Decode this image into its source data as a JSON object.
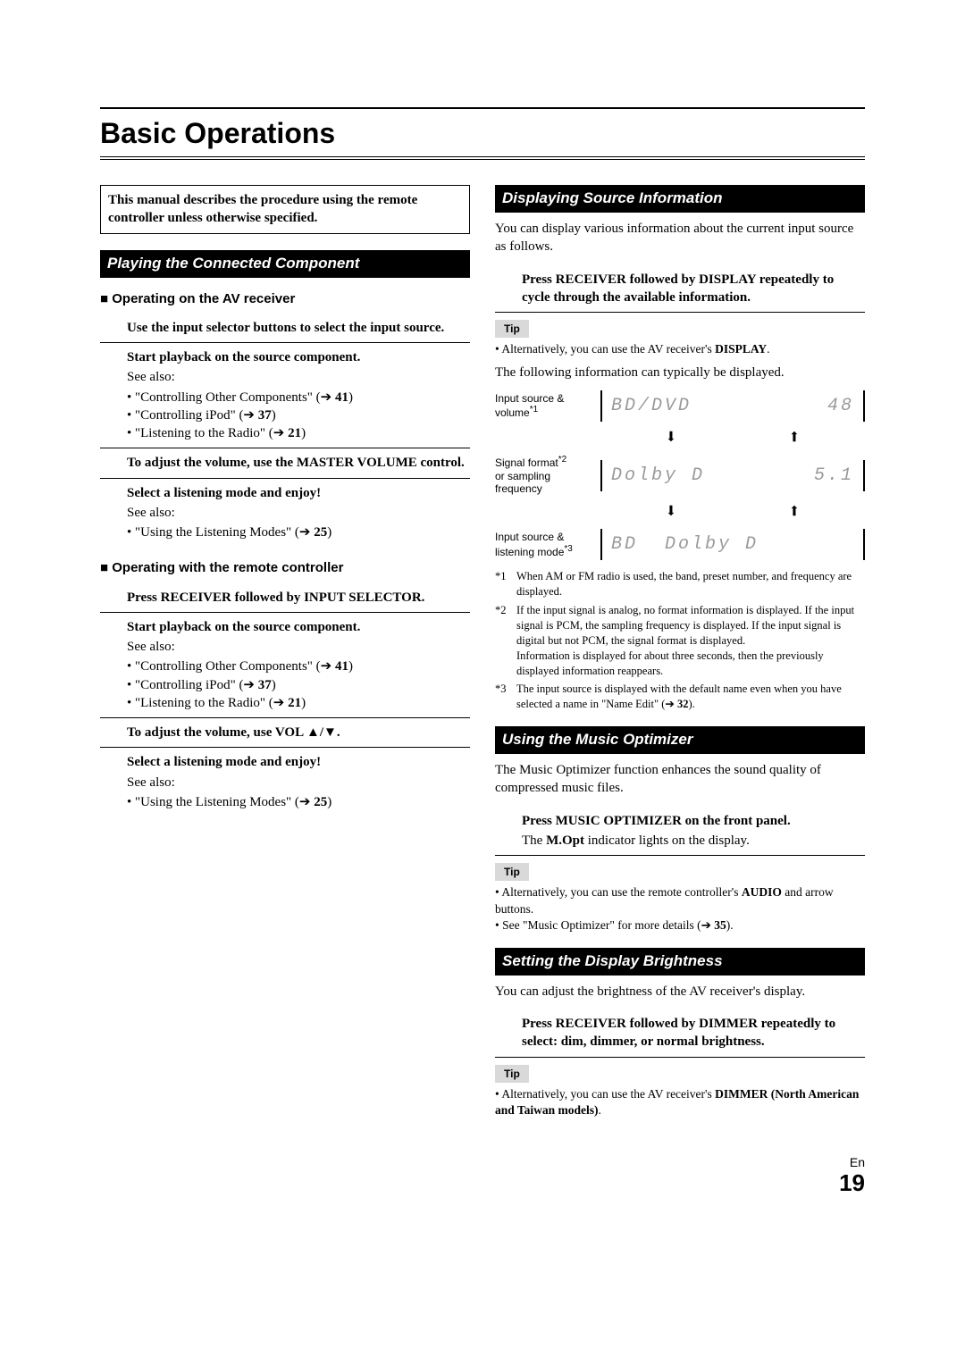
{
  "page": {
    "title": "Basic Operations",
    "lang": "En",
    "number": "19"
  },
  "left": {
    "intro": "This manual describes the procedure using the remote controller unless otherwise specified.",
    "section1_title": "Playing the Connected Component",
    "sub_av": "Operating on the AV receiver",
    "av_step1": "Use the input selector buttons to select the input source.",
    "av_step2_lead": "Start playback on the source component.",
    "see_also": "See also:",
    "b_other": "\"Controlling Other Components\" (➔ ",
    "p41": "41",
    "b_ipod": "\"Controlling iPod\" (➔ ",
    "p37": "37",
    "b_radio": "\"Listening to the Radio\" (➔ ",
    "p21": "21",
    "av_step3_a": "To adjust the volume, use the ",
    "av_step3_b": "MASTER VOLUME",
    "av_step3_c": " control.",
    "av_step4_lead": "Select a listening mode and enjoy!",
    "b_modes": "\"Using the Listening Modes\" (➔ ",
    "p25": "25",
    "sub_rc": "Operating with the remote controller",
    "rc_step1_a": "Press ",
    "rc_step1_b": "RECEIVER",
    "rc_step1_c": " followed by ",
    "rc_step1_d": "INPUT SELECTOR",
    "rc_step1_e": ".",
    "rc_step3_a": "To adjust the volume, use ",
    "rc_step3_b": "VOL ▲/▼",
    "rc_step3_c": "."
  },
  "right": {
    "sec_display_title": "Displaying Source Information",
    "disp_intro": "You can display various information about the current input source as follows.",
    "disp_step_a": "Press ",
    "disp_step_b": "RECEIVER",
    "disp_step_c": " followed by ",
    "disp_step_d": "DISPLAY",
    "disp_step_e": " repeatedly to cycle through the available information.",
    "tip_label": "Tip",
    "disp_tip_a": "Alternatively, you can use the AV receiver's ",
    "disp_tip_b": "DISPLAY",
    "disp_tip_c": ".",
    "disp_para": "The following information can typically be displayed.",
    "row1_label_a": "Input source &",
    "row1_label_b": "volume",
    "row1_sup": "*1",
    "row1_panel_a": "BD/DVD",
    "row1_panel_b": "48",
    "arrow_down": "⬇",
    "arrow_up": "⬆",
    "row2_label_a": "Signal format",
    "row2_sup": "*2",
    "row2_label_b": "or sampling frequency",
    "row2_panel_a": "Dolby D",
    "row2_panel_b": "5.1",
    "row3_label_a": "Input source &",
    "row3_label_b": "listening mode",
    "row3_sup": "*3",
    "row3_panel_a": "BD",
    "row3_panel_b": "Dolby D",
    "fn1_mark": "*1",
    "fn1": "When AM or FM radio is used, the band, preset number, and frequency are displayed.",
    "fn2_mark": "*2",
    "fn2a": "If the input signal is analog, no format information is displayed. If the input signal is PCM, the sampling frequency is displayed. If the input signal is digital but not PCM, the signal format is displayed.",
    "fn2b": "Information is displayed for about three seconds, then the previously displayed information reappears.",
    "fn3_mark": "*3",
    "fn3a": "The input source is displayed with the default name even when you have selected a name in \"Name Edit\" (➔ ",
    "fn3_p": "32",
    "fn3b": ").",
    "sec_music_title": "Using the Music Optimizer",
    "music_intro": "The Music Optimizer function enhances the sound quality of compressed music files.",
    "music_step_a": "Press ",
    "music_step_b": "MUSIC OPTIMIZER",
    "music_step_c": " on the front panel.",
    "music_step_d": "The ",
    "music_step_e": "M.Opt",
    "music_step_f": " indicator lights on the display.",
    "music_tip1_a": "Alternatively, you can use the remote controller's ",
    "music_tip1_b": "AUDIO",
    "music_tip1_c": " and arrow buttons.",
    "music_tip2_a": "See \"Music Optimizer\" for more details (➔ ",
    "music_tip2_p": "35",
    "music_tip2_b": ").",
    "sec_bright_title": "Setting the Display Brightness",
    "bright_intro": "You can adjust the brightness of the AV receiver's display.",
    "bright_step_a": "Press ",
    "bright_step_b": "RECEIVER",
    "bright_step_c": " followed by ",
    "bright_step_d": "DIMMER",
    "bright_step_e": " repeatedly to select: dim, dimmer, or normal brightness.",
    "bright_tip_a": "Alternatively, you can use the AV receiver's ",
    "bright_tip_b": "DIMMER",
    "bright_tip_c": " (North American and Taiwan models)",
    "bright_tip_d": "."
  }
}
